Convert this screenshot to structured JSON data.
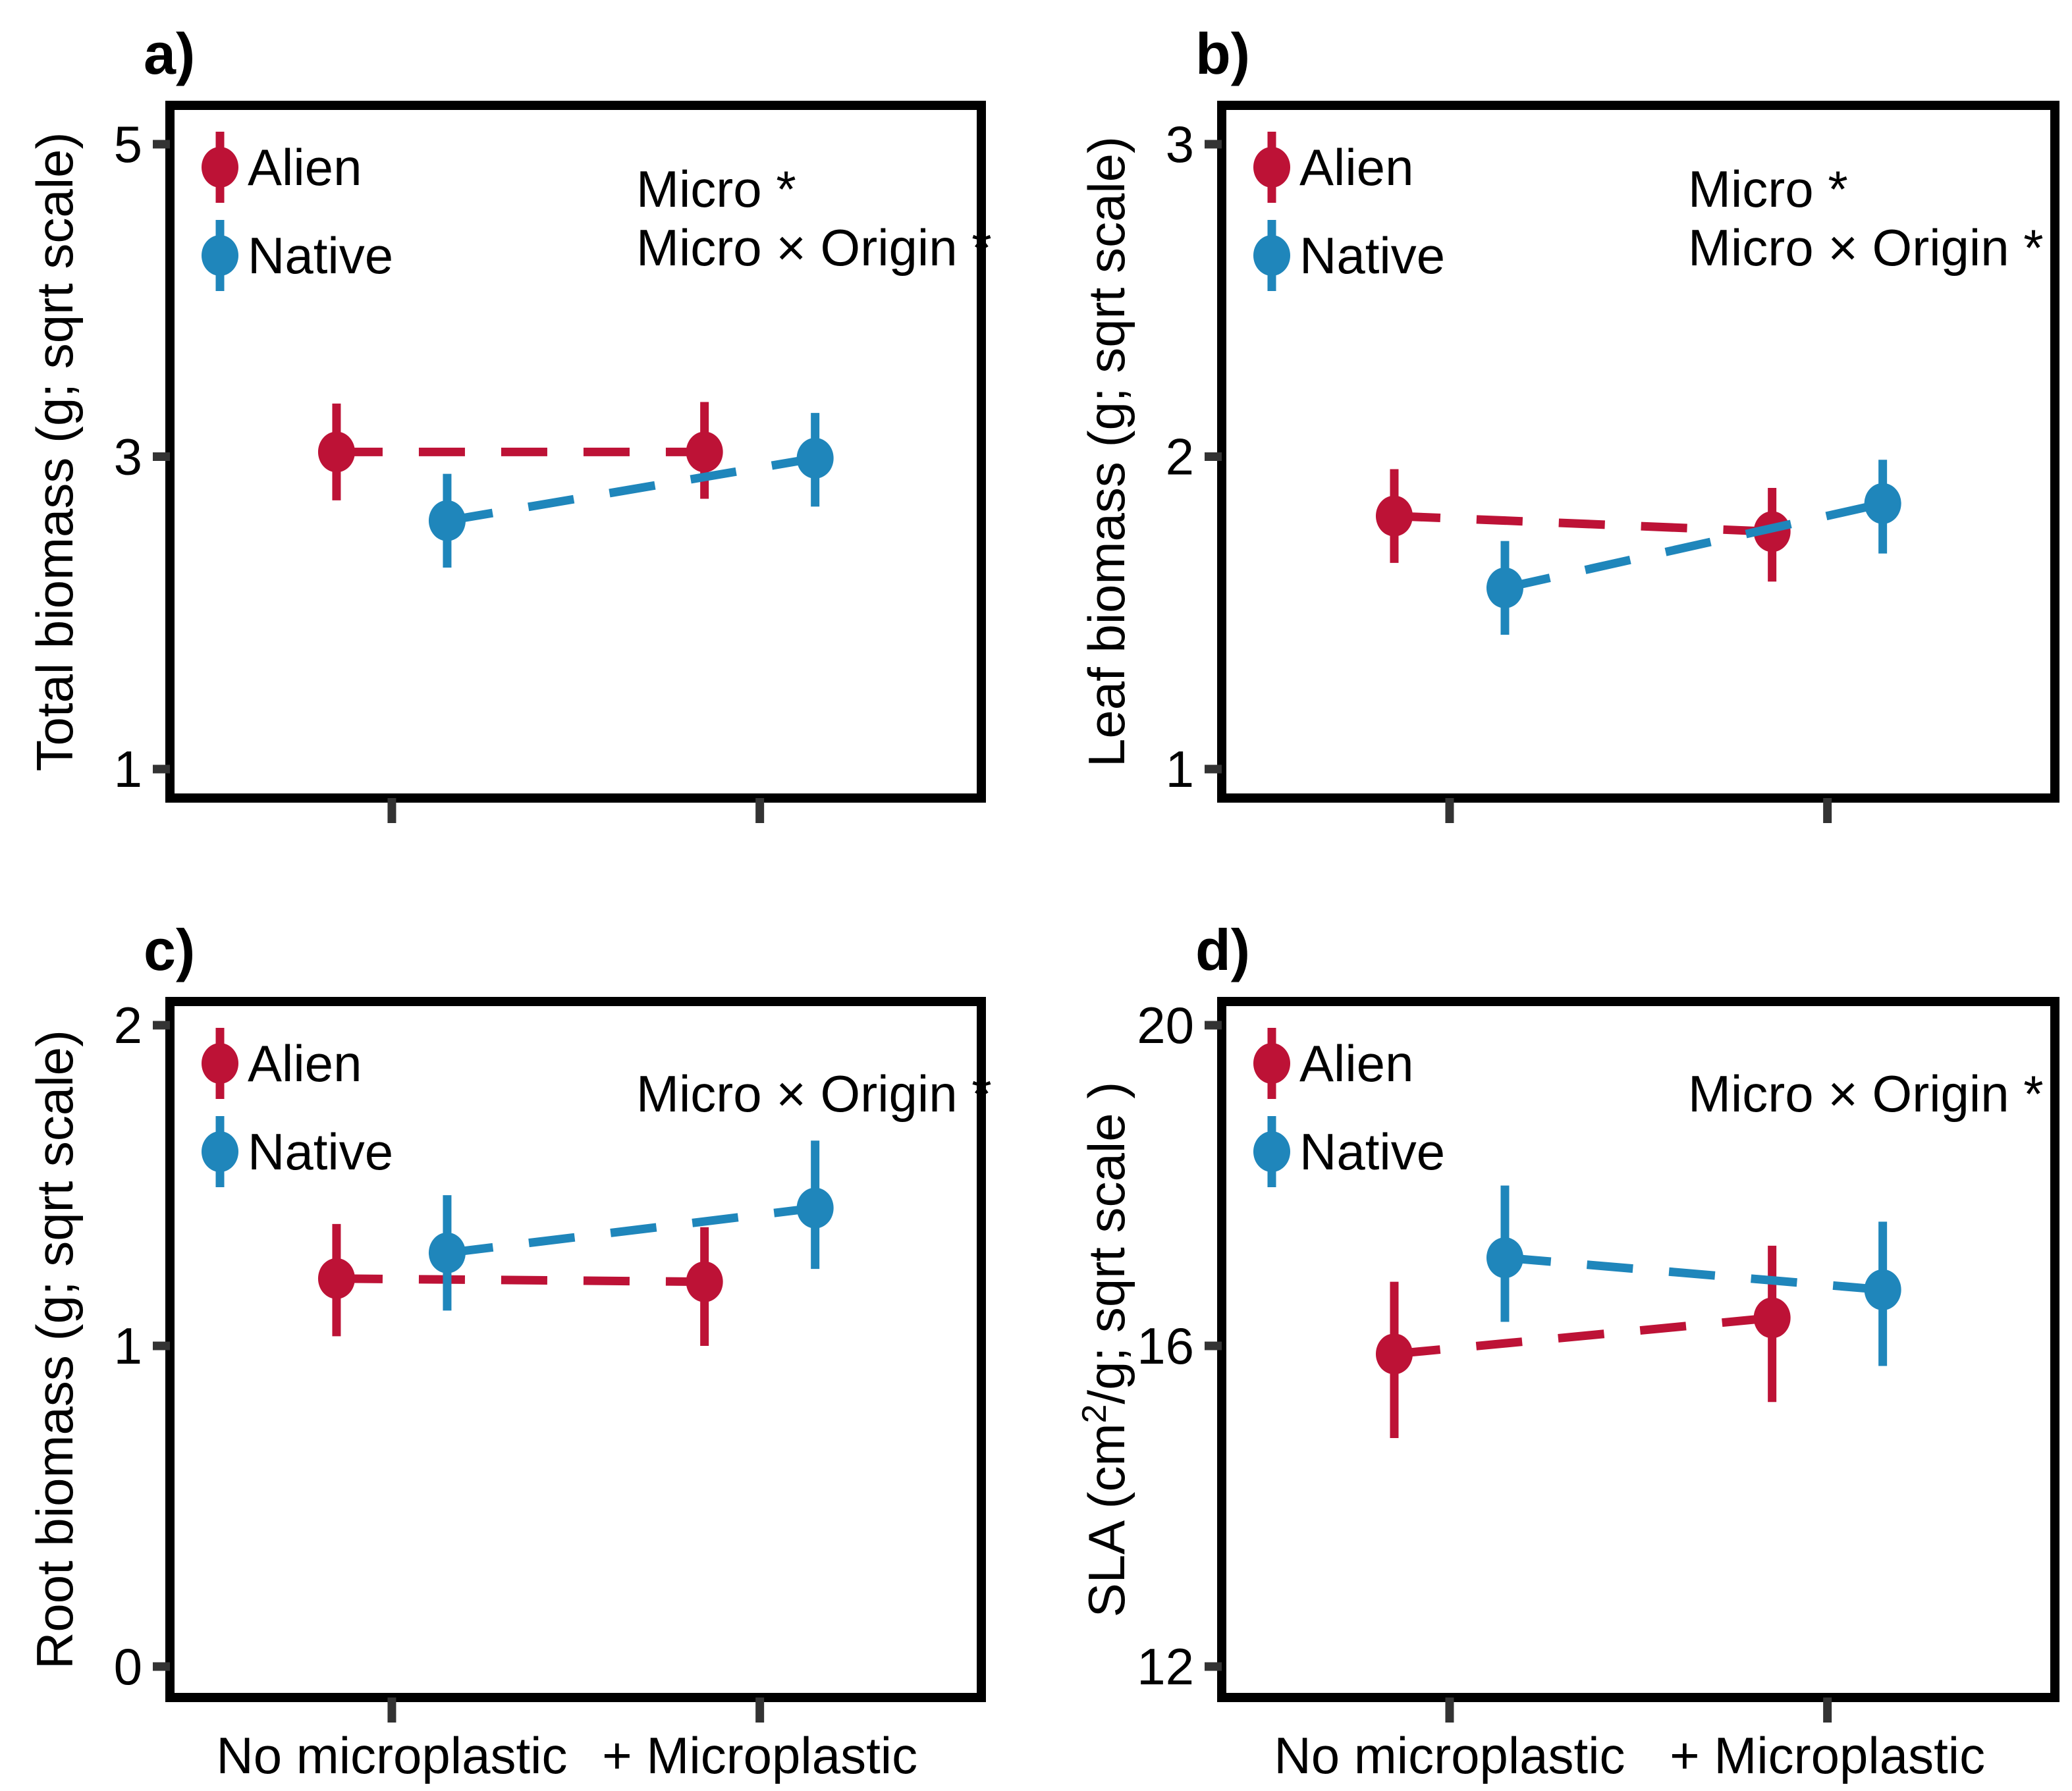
{
  "figure": {
    "background": "#ffffff",
    "border_color": "#000000",
    "tick_color": "#333333",
    "series_colors": {
      "alien": "#BD1236",
      "native": "#1F86BB"
    }
  },
  "legend": {
    "alien_label": "Alien",
    "native_label": "Native"
  },
  "x_axis": {
    "categories": [
      "No microplastic",
      "+ Microplastic"
    ]
  },
  "chart_data": [
    {
      "id": "a",
      "tag": "a)",
      "type": "pointrange",
      "ylabel_parts": [
        {
          "t": "Total biomass (g; sqrt scale)"
        }
      ],
      "yticks": [
        1,
        3,
        5
      ],
      "ylim": [
        0.8145,
        5.2487
      ],
      "categories": [
        "No microplastic",
        "+ Microplastic"
      ],
      "annotations": [
        "Micro *",
        "Micro × Origin *"
      ],
      "series": [
        {
          "key": "alien",
          "name": "Alien",
          "values": [
            {
              "y": 3.03,
              "ci": [
                2.72,
                3.34
              ]
            },
            {
              "y": 3.03,
              "ci": [
                2.73,
                3.35
              ]
            }
          ]
        },
        {
          "key": "native",
          "name": "Native",
          "values": [
            {
              "y": 2.59,
              "ci": [
                2.29,
                2.89
              ]
            },
            {
              "y": 2.99,
              "ci": [
                2.68,
                3.28
              ]
            }
          ]
        }
      ]
    },
    {
      "id": "b",
      "tag": "b)",
      "type": "pointrange",
      "ylabel_parts": [
        {
          "t": "Leaf biomass (g; sqrt scale)"
        }
      ],
      "yticks": [
        1,
        2,
        3
      ],
      "ylim": [
        0.9073,
        3.1243
      ],
      "categories": [
        "No microplastic",
        "+ Microplastic"
      ],
      "annotations": [
        "Micro *",
        "Micro × Origin *"
      ],
      "series": [
        {
          "key": "alien",
          "name": "Alien",
          "values": [
            {
              "y": 1.81,
              "ci": [
                1.66,
                1.96
              ]
            },
            {
              "y": 1.76,
              "ci": [
                1.6,
                1.9
              ]
            }
          ]
        },
        {
          "key": "native",
          "name": "Native",
          "values": [
            {
              "y": 1.58,
              "ci": [
                1.43,
                1.73
              ]
            },
            {
              "y": 1.85,
              "ci": [
                1.69,
                1.99
              ]
            }
          ]
        }
      ]
    },
    {
      "id": "c",
      "tag": "c)",
      "type": "pointrange",
      "ylabel_parts": [
        {
          "t": "Root biomass (g; sqrt scale)"
        }
      ],
      "yticks": [
        0,
        1,
        2
      ],
      "ylim": [
        -0.0965,
        2.0739
      ],
      "categories": [
        "No microplastic",
        "+ Microplastic"
      ],
      "annotations": [
        "Micro × Origin *"
      ],
      "series": [
        {
          "key": "alien",
          "name": "Alien",
          "values": [
            {
              "y": 1.21,
              "ci": [
                1.03,
                1.38
              ]
            },
            {
              "y": 1.2,
              "ci": [
                1.0,
                1.37
              ]
            }
          ]
        },
        {
          "key": "native",
          "name": "Native",
          "values": [
            {
              "y": 1.29,
              "ci": [
                1.11,
                1.47
              ]
            },
            {
              "y": 1.43,
              "ci": [
                1.24,
                1.64
              ]
            }
          ]
        }
      ]
    },
    {
      "id": "d",
      "tag": "d)",
      "type": "pointrange",
      "ylabel_parts": [
        {
          "t": "SLA (cm"
        },
        {
          "t": "2",
          "sup": true
        },
        {
          "t": "/g; sqrt scale )"
        }
      ],
      "yticks": [
        12,
        16,
        20
      ],
      "ylim": [
        11.614,
        20.296
      ],
      "categories": [
        "No microplastic",
        "+ Microplastic"
      ],
      "annotations": [
        "Micro × Origin *"
      ],
      "series": [
        {
          "key": "alien",
          "name": "Alien",
          "values": [
            {
              "y": 15.9,
              "ci": [
                14.85,
                16.8
              ]
            },
            {
              "y": 16.35,
              "ci": [
                15.3,
                17.25
              ]
            }
          ]
        },
        {
          "key": "native",
          "name": "Native",
          "values": [
            {
              "y": 17.1,
              "ci": [
                16.3,
                18.0
              ]
            },
            {
              "y": 16.7,
              "ci": [
                15.75,
                17.55
              ]
            }
          ]
        }
      ]
    }
  ]
}
